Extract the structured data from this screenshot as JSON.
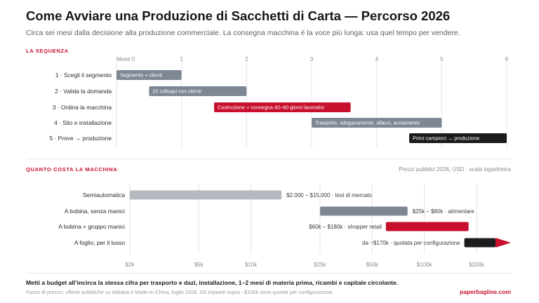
{
  "title": "Come Avviare una Produzione di Sacchetti di Carta — Percorso 2026",
  "subtitle": "Circa sei mesi dalla decisione alla produzione commerciale. La consegna macchina è la voce più lunga: usa quel tempo per vendere.",
  "colors": {
    "accent": "#c8102e",
    "slate": "#7e8794",
    "light": "#b4b9c0",
    "dark": "#1c1c1e",
    "grid": "#e3e3e3"
  },
  "chart_data": [
    {
      "type": "bar",
      "title": "LA SEQUENZA",
      "x_ticks": [
        "Mese 0",
        "1",
        "2",
        "3",
        "4",
        "5",
        "6"
      ],
      "xlim": [
        0,
        6
      ],
      "grid": true,
      "tasks": [
        {
          "label": "1 · Scegli il segmento",
          "start": 0,
          "end": 1,
          "bar_text": "Segmento + clienti",
          "color": "slate"
        },
        {
          "label": "2 · Valida la domanda",
          "start": 0.5,
          "end": 2,
          "bar_text": "20 colloqui con clienti",
          "color": "slate"
        },
        {
          "label": "3 · Ordina la macchina",
          "start": 1.5,
          "end": 3.6,
          "bar_text": "Costruzione + consegna 40–60 giorni lavorativi",
          "color": "accent"
        },
        {
          "label": "4 · Sito e installazione",
          "start": 3,
          "end": 5,
          "bar_text": "Trasporto, sdoganamento, allacci, avviamento",
          "color": "slate"
        },
        {
          "label": "5 · Prove → produzione",
          "start": 4.5,
          "end": 6,
          "bar_text": "Primi campioni → produzione",
          "color": "dark"
        }
      ]
    },
    {
      "type": "bar",
      "title": "QUANTO COSTA LA MACCHINA",
      "note": "Prezzi pubblici 2026, USD · scala logaritmica",
      "x_scale": "log",
      "x_ticks": [
        {
          "value": 2000,
          "label": "$2k"
        },
        {
          "value": 5000,
          "label": "$5k"
        },
        {
          "value": 10000,
          "label": "$10k"
        },
        {
          "value": 25000,
          "label": "$25k"
        },
        {
          "value": 50000,
          "label": "$50k"
        },
        {
          "value": 100000,
          "label": "$100k"
        },
        {
          "value": 200000,
          "label": "$200k"
        }
      ],
      "xlim": [
        2000,
        300000
      ],
      "grid": true,
      "ranges": [
        {
          "label": "Semiautomatica",
          "low": 2000,
          "high": 15000,
          "range_text": "$2.000 – $15.000 · test di mercato",
          "text_side": "right",
          "color": "light",
          "arrow": false
        },
        {
          "label": "A bobina, senza manici",
          "low": 25000,
          "high": 80000,
          "range_text": "$25k – $80k · alimentare",
          "text_side": "right",
          "color": "slate",
          "arrow": false
        },
        {
          "label": "A bobina + gruppo manici",
          "low": 60000,
          "high": 180000,
          "range_text": "$60k – $180k · shopper retail",
          "text_side": "left",
          "color": "accent",
          "arrow": false
        },
        {
          "label": "A foglio, per il lusso",
          "low": 170000,
          "high": 250000,
          "range_text": "da ~$170k · quotata per configurazione",
          "text_side": "left",
          "color": "dark",
          "arrow": true
        }
      ]
    }
  ],
  "footer": {
    "bold": "Metti a budget all’incirca la stessa cifra per trasporto e dazi, installazione, 1–2 mesi di materia prima, ricambi e capitale circolante.",
    "note": "Fasce di prezzo: offerte pubbliche su Alibaba e Made-in-China, luglio 2026. Gli impianti sopra ~$100k sono quotati per configurazione.",
    "brand": "paperbagline.com"
  }
}
